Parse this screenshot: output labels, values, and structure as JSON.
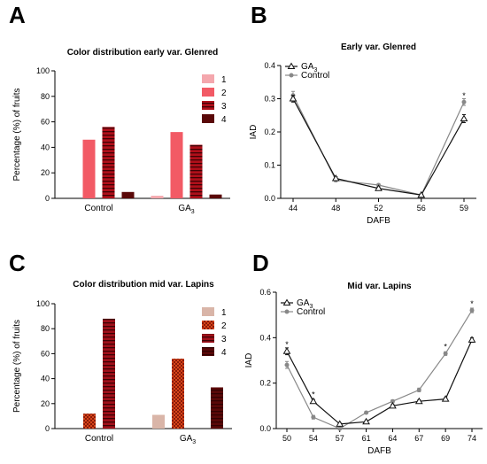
{
  "panels": {
    "a": {
      "letter": "A"
    },
    "b": {
      "letter": "B"
    },
    "c": {
      "letter": "C"
    },
    "d": {
      "letter": "D"
    }
  },
  "chart_data": [
    {
      "id": "a",
      "type": "bar",
      "title": "Color distribution early var. Glenred",
      "ylabel": "Percentage (%) of fruits",
      "ylim": [
        0,
        100
      ],
      "yticks": [
        0,
        20,
        40,
        60,
        80,
        100
      ],
      "categories": [
        "Control",
        "GA3"
      ],
      "category_labels": [
        {
          "main": "Control",
          "sub": ""
        },
        {
          "main": "GA",
          "sub": "3"
        }
      ],
      "series": [
        {
          "name": "1",
          "values": [
            0,
            2
          ],
          "color": "#f4a7ad",
          "pattern": "none"
        },
        {
          "name": "2",
          "values": [
            46,
            52
          ],
          "color": "#f25a65",
          "pattern": "none"
        },
        {
          "name": "3",
          "values": [
            56,
            42
          ],
          "color": "#b00f1a",
          "pattern": "hstripe"
        },
        {
          "name": "4",
          "values": [
            5,
            3
          ],
          "color": "#5a0808",
          "pattern": "none"
        }
      ],
      "legend": "top-right"
    },
    {
      "id": "b",
      "type": "line",
      "title": "Early var. Glenred",
      "ylabel": "IAD",
      "xlabel": "DAFB",
      "x": [
        44,
        48,
        52,
        56,
        59
      ],
      "ylim": [
        0,
        0.4
      ],
      "yticks": [
        0.0,
        0.1,
        0.2,
        0.3,
        0.4
      ],
      "series": [
        {
          "name": "GA",
          "name_sub": "3",
          "values": [
            0.3,
            0.06,
            0.03,
            0.01,
            0.24
          ],
          "errors": [
            0.01,
            0.005,
            0.004,
            0.003,
            0.012
          ],
          "color": "#111111",
          "marker": "triangle"
        },
        {
          "name": "Control",
          "name_sub": "",
          "values": [
            0.31,
            0.055,
            0.04,
            0.01,
            0.29
          ],
          "errors": [
            0.012,
            0.005,
            0.004,
            0.003,
            0.01
          ],
          "color": "#888888",
          "marker": "circle"
        }
      ],
      "annotations": [
        {
          "x": 59,
          "y": 0.31,
          "text": "*"
        }
      ],
      "legend": "top-left"
    },
    {
      "id": "c",
      "type": "bar",
      "title": "Color distribution mid var. Lapins",
      "ylabel": "Percentage (%) of fruits",
      "ylim": [
        0,
        100
      ],
      "yticks": [
        0,
        20,
        40,
        60,
        80,
        100
      ],
      "categories": [
        "Control",
        "GA3"
      ],
      "category_labels": [
        {
          "main": "Control",
          "sub": ""
        },
        {
          "main": "GA",
          "sub": "3"
        }
      ],
      "series": [
        {
          "name": "1",
          "values": [
            0,
            11
          ],
          "color": "#d9b5a8",
          "pattern": "none"
        },
        {
          "name": "2",
          "values": [
            12,
            56
          ],
          "color": "#d6451a",
          "pattern": "check"
        },
        {
          "name": "3",
          "values": [
            88,
            0
          ],
          "color": "#a0101a",
          "pattern": "hstripe"
        },
        {
          "name": "4",
          "values": [
            0,
            33
          ],
          "color": "#5a0808",
          "pattern": "hstripe"
        }
      ],
      "legend": "top-right"
    },
    {
      "id": "d",
      "type": "line",
      "title": "Mid var. Lapins",
      "ylabel": "IAD",
      "xlabel": "DAFB",
      "x": [
        50,
        54,
        57,
        61,
        64,
        67,
        69,
        74
      ],
      "ylim": [
        0,
        0.6
      ],
      "yticks": [
        0.0,
        0.2,
        0.4,
        0.6
      ],
      "series": [
        {
          "name": "GA",
          "name_sub": "3",
          "values": [
            0.34,
            0.12,
            0.02,
            0.03,
            0.1,
            0.12,
            0.13,
            0.39
          ],
          "errors": [
            0.015,
            0.008,
            0.005,
            0.005,
            0.006,
            0.006,
            0.006,
            0.01
          ],
          "color": "#111111",
          "marker": "triangle"
        },
        {
          "name": "Control",
          "name_sub": "",
          "values": [
            0.28,
            0.05,
            0.0,
            0.07,
            0.12,
            0.17,
            0.33,
            0.52
          ],
          "errors": [
            0.015,
            0.008,
            0.005,
            0.005,
            0.006,
            0.008,
            0.008,
            0.01
          ],
          "color": "#888888",
          "marker": "circle"
        }
      ],
      "annotations": [
        {
          "x": 50,
          "y": 0.37,
          "text": "*"
        },
        {
          "x": 54,
          "y": 0.15,
          "text": "*"
        },
        {
          "x": 69,
          "y": 0.36,
          "text": "*"
        },
        {
          "x": 74,
          "y": 0.55,
          "text": "*"
        }
      ],
      "legend": "top-left"
    }
  ]
}
